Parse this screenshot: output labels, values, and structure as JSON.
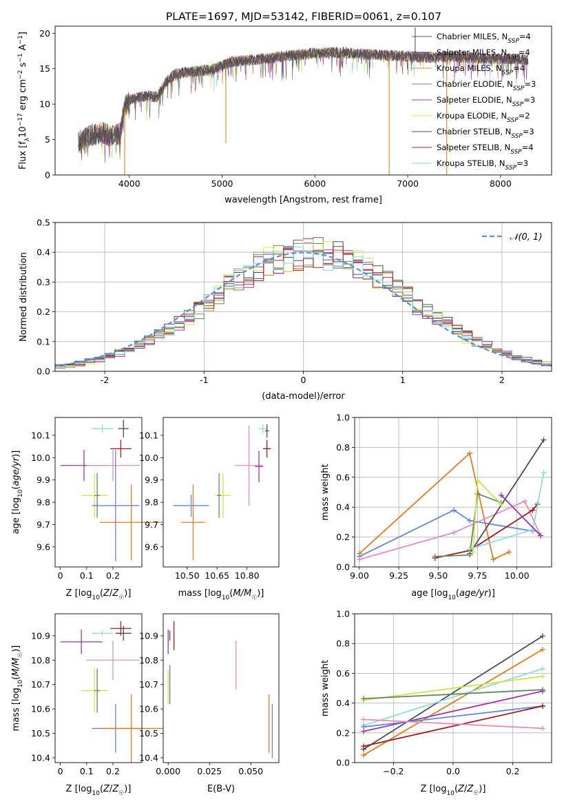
{
  "page_title": "PLATE=1697, MJD=53142, FIBERID=0061, z=0.107",
  "models": [
    {
      "name": "Chabrier MILES",
      "nssp": "4",
      "color": "#5a5a5a"
    },
    {
      "name": "Salpeter MILES",
      "nssp": "4",
      "color": "#7b2d8c"
    },
    {
      "name": "Kroupa MILES",
      "nssp": "4",
      "color": "#d3882a"
    },
    {
      "name": "Chabrier ELODIE",
      "nssp": "3",
      "color": "#5e8a5e"
    },
    {
      "name": "Salpeter ELODIE",
      "nssp": "3",
      "color": "#9a3cb0"
    },
    {
      "name": "Kroupa ELODIE",
      "nssp": "2",
      "color": "#d6e84a"
    },
    {
      "name": "Chabrier STELIB",
      "nssp": "3",
      "color": "#4a4a4a"
    },
    {
      "name": "Salpeter STELIB",
      "nssp": "4",
      "color": "#b22222"
    },
    {
      "name": "Kroupa STELIB",
      "nssp": "3",
      "color": "#7fd8dc"
    }
  ],
  "chart_data": [
    {
      "id": "spectrum",
      "type": "line",
      "xlabel": "wavelength [Angstrom, rest frame]",
      "ylabel": "Flux [f_λ10^-17 erg cm^-2 s^-1 A^-1]",
      "xlim": [
        3200,
        8550
      ],
      "ylim": [
        0,
        21
      ],
      "xticks": [
        4000,
        5000,
        6000,
        7000,
        8000
      ],
      "yticks": [
        0,
        5,
        10,
        15,
        20
      ],
      "continuum": {
        "x": [
          3450,
          3600,
          3700,
          3800,
          3900,
          3950,
          4000,
          4100,
          4200,
          4300,
          4400,
          4500,
          4700,
          4900,
          5100,
          5300,
          5500,
          5700,
          6000,
          6300,
          6600,
          6900,
          7200,
          7500,
          7800,
          8100,
          8300
        ],
        "y": [
          4.8,
          5.6,
          6.0,
          5.5,
          5.8,
          9.5,
          10.5,
          10.9,
          11.2,
          11.0,
          13.2,
          14.3,
          14.6,
          14.9,
          16.0,
          16.2,
          16.5,
          16.8,
          17.2,
          17.3,
          17.0,
          16.8,
          16.6,
          16.7,
          16.5,
          16.4,
          16.3
        ]
      },
      "outliers": [
        {
          "x": 5040,
          "y": 4.5
        },
        {
          "x": 3950,
          "y": 0
        },
        {
          "x": 6800,
          "y": 0
        },
        {
          "x": 7420,
          "y": 0
        },
        {
          "x": 7080,
          "y": 20.8
        }
      ],
      "legend_location": "upper-right",
      "grid": false
    },
    {
      "id": "residuals",
      "type": "histogram",
      "xlabel": "(data-model)/error",
      "ylabel": "Normed distribution",
      "xlim": [
        -2.5,
        2.5
      ],
      "ylim": [
        0,
        0.5
      ],
      "xticks": [
        -2,
        -1,
        0,
        1,
        2
      ],
      "yticks": [
        0.0,
        0.1,
        0.2,
        0.3,
        0.4,
        0.5
      ],
      "bin_width": 0.1,
      "reference_curve": {
        "label": "𝒩(0, 1)",
        "color": "#5b8ed6",
        "dashed": true
      },
      "legend_location": "upper-right",
      "grid": true
    },
    {
      "id": "age-vs-Z",
      "type": "errorbar",
      "xlabel": "Z [log10(Z/Z☉)]",
      "ylabel": "age [log10(age/yr)]",
      "xlim": [
        -0.02,
        0.31
      ],
      "ylim": [
        9.51,
        10.18
      ],
      "xticks": [
        0.0,
        0.1,
        0.2
      ],
      "yticks": [
        9.6,
        9.7,
        9.8,
        9.9,
        10.0,
        10.1
      ],
      "points": [
        {
          "model": 6,
          "x": 0.24,
          "xerr": 0.02,
          "y": 10.13,
          "yerr": 0.04
        },
        {
          "model": 8,
          "x": 0.16,
          "xerr": 0.04,
          "y": 10.13,
          "yerr": 0.02
        },
        {
          "model": 7,
          "x": 0.23,
          "xerr": 0.04,
          "y": 10.04,
          "yerr": 0.04
        },
        {
          "model": 4,
          "x": 0.09,
          "xerr": 0.09,
          "y": 9.965,
          "yerr": 0.07
        },
        {
          "model": 9,
          "x": 0.2,
          "xerr": 0.1,
          "y": 9.965,
          "yerr": 0.07
        },
        {
          "model": 5,
          "x": 0.13,
          "xerr": 0.05,
          "y": 9.83,
          "yerr": 0.1
        },
        {
          "model": 3,
          "x": 0.14,
          "xerr": 0.01,
          "y": 9.83,
          "yerr": 0.1
        },
        {
          "model": 10,
          "x": 0.21,
          "xerr": 0.09,
          "y": 9.785,
          "yerr": 0.25
        },
        {
          "model": 2,
          "x": 0.27,
          "xerr": 0.12,
          "y": 9.71,
          "yerr": 0.17
        }
      ]
    },
    {
      "id": "age-vs-mass",
      "type": "errorbar",
      "xlabel": "mass [log10(M/M☉)]",
      "ylabel": "",
      "xlim": [
        10.38,
        10.96
      ],
      "ylim": [
        9.51,
        10.18
      ],
      "xticks": [
        10.5,
        10.65,
        10.8
      ],
      "xticklabels": [
        "10.50",
        "10.65",
        "10.80"
      ],
      "yticks": [
        9.6,
        9.7,
        9.8,
        9.9,
        10.0,
        10.1
      ],
      "points": [
        {
          "model": 8,
          "x": 10.88,
          "xerr": 0.02,
          "y": 10.13,
          "yerr": 0.02
        },
        {
          "model": 6,
          "x": 10.9,
          "xerr": 0.01,
          "y": 10.12,
          "yerr": 0.03
        },
        {
          "model": 7,
          "x": 10.9,
          "xerr": 0.02,
          "y": 10.04,
          "yerr": 0.04
        },
        {
          "model": 9,
          "x": 10.81,
          "xerr": 0.07,
          "y": 9.965,
          "yerr": 0.18
        },
        {
          "model": 4,
          "x": 10.86,
          "xerr": 0.02,
          "y": 9.96,
          "yerr": 0.07
        },
        {
          "model": 5,
          "x": 10.68,
          "xerr": 0.04,
          "y": 9.83,
          "yerr": 0.1
        },
        {
          "model": 3,
          "x": 10.66,
          "xerr": 0.01,
          "y": 9.83,
          "yerr": 0.1
        },
        {
          "model": 10,
          "x": 10.52,
          "xerr": 0.09,
          "y": 9.785,
          "yerr": 0.05
        },
        {
          "model": 2,
          "x": 10.53,
          "xerr": 0.06,
          "y": 9.71,
          "yerr": 0.17
        }
      ]
    },
    {
      "id": "mass-weight-vs-age",
      "type": "line",
      "xlabel": "age [log10(age/yr)]",
      "ylabel": "mass weight",
      "xlim": [
        8.97,
        10.22
      ],
      "ylim": [
        0,
        1
      ],
      "xticks": [
        9.0,
        9.25,
        9.5,
        9.75,
        10.0
      ],
      "xticklabels": [
        "9.00",
        "9.25",
        "9.50",
        "9.75",
        "10.00"
      ],
      "yticks": [
        0.0,
        0.2,
        0.4,
        0.6,
        0.8,
        1.0
      ],
      "grid": true,
      "series": [
        {
          "color": "#e07b1a",
          "x": [
            9.0,
            9.7,
            9.85,
            9.95
          ],
          "y": [
            0.09,
            0.76,
            0.05,
            0.1
          ]
        },
        {
          "color": "#6486d6",
          "x": [
            9.0,
            9.6,
            9.7,
            10.1
          ],
          "y": [
            0.07,
            0.38,
            0.31,
            0.24
          ]
        },
        {
          "color": "#e68bbd",
          "x": [
            9.0,
            9.6,
            10.05,
            10.15
          ],
          "y": [
            0.05,
            0.23,
            0.44,
            0.21
          ]
        },
        {
          "color": "#4d4d4d",
          "x": [
            9.7,
            10.17
          ],
          "y": [
            0.09,
            0.85
          ]
        },
        {
          "color": "#a31a1a",
          "x": [
            9.48,
            9.7,
            10.1,
            10.13
          ],
          "y": [
            0.06,
            0.11,
            0.38,
            0.42
          ]
        },
        {
          "color": "#5e8a5e",
          "x": [
            9.48,
            9.7,
            9.75,
            9.9
          ],
          "y": [
            0.07,
            0.08,
            0.49,
            0.43
          ]
        },
        {
          "color": "#8fdbe0",
          "x": [
            9.7,
            10.1,
            10.17
          ],
          "y": [
            0.12,
            0.25,
            0.63
          ]
        },
        {
          "color": "#c9e64a",
          "x": [
            9.72,
            9.75,
            9.9
          ],
          "y": [
            0.1,
            0.58,
            0.42
          ]
        },
        {
          "color": "#9a32b0",
          "x": [
            9.9,
            10.15
          ],
          "y": [
            0.48,
            0.21
          ]
        }
      ]
    },
    {
      "id": "mass-vs-Z",
      "type": "errorbar",
      "xlabel": "Z [log10(Z/Z☉)]",
      "ylabel": "mass [log10(M/M☉)]",
      "xlim": [
        -0.02,
        0.31
      ],
      "ylim": [
        10.38,
        10.99
      ],
      "xticks": [
        0.0,
        0.1,
        0.2
      ],
      "yticks": [
        10.4,
        10.5,
        10.6,
        10.7,
        10.8,
        10.9
      ],
      "points": [
        {
          "model": 7,
          "x": 0.23,
          "xerr": 0.04,
          "y": 10.93,
          "yerr": 0.03
        },
        {
          "model": 6,
          "x": 0.24,
          "xerr": 0.03,
          "y": 10.91,
          "yerr": 0.03
        },
        {
          "model": 8,
          "x": 0.16,
          "xerr": 0.04,
          "y": 10.91,
          "yerr": 0.01
        },
        {
          "model": 4,
          "x": 0.08,
          "xerr": 0.08,
          "y": 10.875,
          "yerr": 0.05
        },
        {
          "model": 9,
          "x": 0.2,
          "xerr": 0.1,
          "y": 10.8,
          "yerr": 0.08
        },
        {
          "model": 5,
          "x": 0.13,
          "xerr": 0.05,
          "y": 10.675,
          "yerr": 0.09
        },
        {
          "model": 3,
          "x": 0.14,
          "xerr": 0.01,
          "y": 10.675,
          "yerr": 0.09
        },
        {
          "model": 10,
          "x": 0.21,
          "xerr": 0.09,
          "y": 10.52,
          "yerr": 0.1
        },
        {
          "model": 2,
          "x": 0.27,
          "xerr": 0.12,
          "y": 10.52,
          "yerr": 0.14
        }
      ]
    },
    {
      "id": "mass-vs-ebv",
      "type": "errorbar",
      "xlabel": "E(B-V)",
      "ylabel": "",
      "xlim": [
        -0.003,
        0.067
      ],
      "ylim": [
        10.38,
        10.99
      ],
      "xticks": [
        0.0,
        0.025,
        0.05
      ],
      "xticklabels": [
        "0.000",
        "0.025",
        "0.050"
      ],
      "yticks": [
        10.4,
        10.5,
        10.6,
        10.7,
        10.8,
        10.9
      ],
      "points": [
        {
          "model": 7,
          "x": 0.0035,
          "xerr": 0,
          "y": 10.9,
          "yerr": 0.06
        },
        {
          "model": 4,
          "x": 0.0,
          "xerr": 0,
          "y": 10.875,
          "yerr": 0.05
        },
        {
          "model": 6,
          "x": 0.001,
          "xerr": 0,
          "y": 10.9,
          "yerr": 0.02
        },
        {
          "model": 9,
          "x": 0.041,
          "xerr": 0,
          "y": 10.78,
          "yerr": 0.1
        },
        {
          "model": 5,
          "x": 0.0,
          "xerr": 0,
          "y": 10.69,
          "yerr": 0.07
        },
        {
          "model": 3,
          "x": 0.001,
          "xerr": 0,
          "y": 10.7,
          "yerr": 0.08
        },
        {
          "model": 2,
          "x": 0.061,
          "xerr": 0,
          "y": 10.54,
          "yerr": 0.12
        },
        {
          "model": 10,
          "x": 0.063,
          "xerr": 0,
          "y": 10.51,
          "yerr": 0.11
        }
      ]
    },
    {
      "id": "mass-weight-vs-Z",
      "type": "line",
      "xlabel": "Z [log10(Z/Z☉)]",
      "ylabel": "mass weight",
      "xlim": [
        -0.33,
        0.33
      ],
      "ylim": [
        0,
        1
      ],
      "xticks": [
        -0.2,
        0.0,
        0.2
      ],
      "xticklabels": [
        "−0.2",
        "0.0",
        "0.2"
      ],
      "yticks": [
        0.0,
        0.2,
        0.4,
        0.6,
        0.8,
        1.0
      ],
      "grid": true,
      "series": [
        {
          "color": "#4d4d4d",
          "x": [
            -0.3,
            0.3
          ],
          "y": [
            0.09,
            0.85
          ]
        },
        {
          "color": "#e07b1a",
          "x": [
            -0.3,
            0.3
          ],
          "y": [
            0.05,
            0.76
          ]
        },
        {
          "color": "#8fdbe0",
          "x": [
            -0.3,
            0.3
          ],
          "y": [
            0.25,
            0.63
          ]
        },
        {
          "color": "#c9e64a",
          "x": [
            -0.3,
            0.3
          ],
          "y": [
            0.42,
            0.58
          ]
        },
        {
          "color": "#5e8a5e",
          "x": [
            -0.3,
            0.3
          ],
          "y": [
            0.43,
            0.49
          ]
        },
        {
          "color": "#9a32b0",
          "x": [
            -0.3,
            0.3
          ],
          "y": [
            0.21,
            0.48
          ]
        },
        {
          "color": "#6486d6",
          "x": [
            -0.3,
            0.3
          ],
          "y": [
            0.24,
            0.38
          ]
        },
        {
          "color": "#a31a1a",
          "x": [
            -0.3,
            0.3
          ],
          "y": [
            0.11,
            0.38
          ]
        },
        {
          "color": "#e68bbd",
          "x": [
            -0.3,
            0.3
          ],
          "y": [
            0.29,
            0.23
          ]
        }
      ]
    }
  ]
}
